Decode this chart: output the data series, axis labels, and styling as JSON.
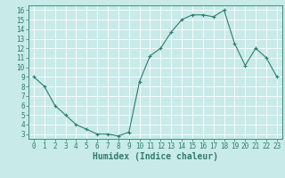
{
  "x": [
    0,
    1,
    2,
    3,
    4,
    5,
    6,
    7,
    8,
    9,
    10,
    11,
    12,
    13,
    14,
    15,
    16,
    17,
    18,
    19,
    20,
    21,
    22,
    23
  ],
  "y": [
    9.0,
    8.0,
    6.0,
    5.0,
    4.0,
    3.5,
    3.0,
    3.0,
    2.8,
    3.2,
    8.5,
    11.2,
    12.0,
    13.7,
    15.0,
    15.5,
    15.5,
    15.3,
    16.0,
    12.5,
    10.2,
    12.0,
    11.0,
    9.0
  ],
  "line_color": "#2e7d6e",
  "marker": "+",
  "marker_size": 3,
  "background_color": "#c8eae8",
  "grid_color": "#ffffff",
  "xlabel": "Humidex (Indice chaleur)",
  "xlim": [
    -0.5,
    23.5
  ],
  "ylim": [
    2.5,
    16.5
  ],
  "yticks": [
    3,
    4,
    5,
    6,
    7,
    8,
    9,
    10,
    11,
    12,
    13,
    14,
    15,
    16
  ],
  "xticks": [
    0,
    1,
    2,
    3,
    4,
    5,
    6,
    7,
    8,
    9,
    10,
    11,
    12,
    13,
    14,
    15,
    16,
    17,
    18,
    19,
    20,
    21,
    22,
    23
  ],
  "tick_label_fontsize": 5.5,
  "xlabel_fontsize": 7
}
